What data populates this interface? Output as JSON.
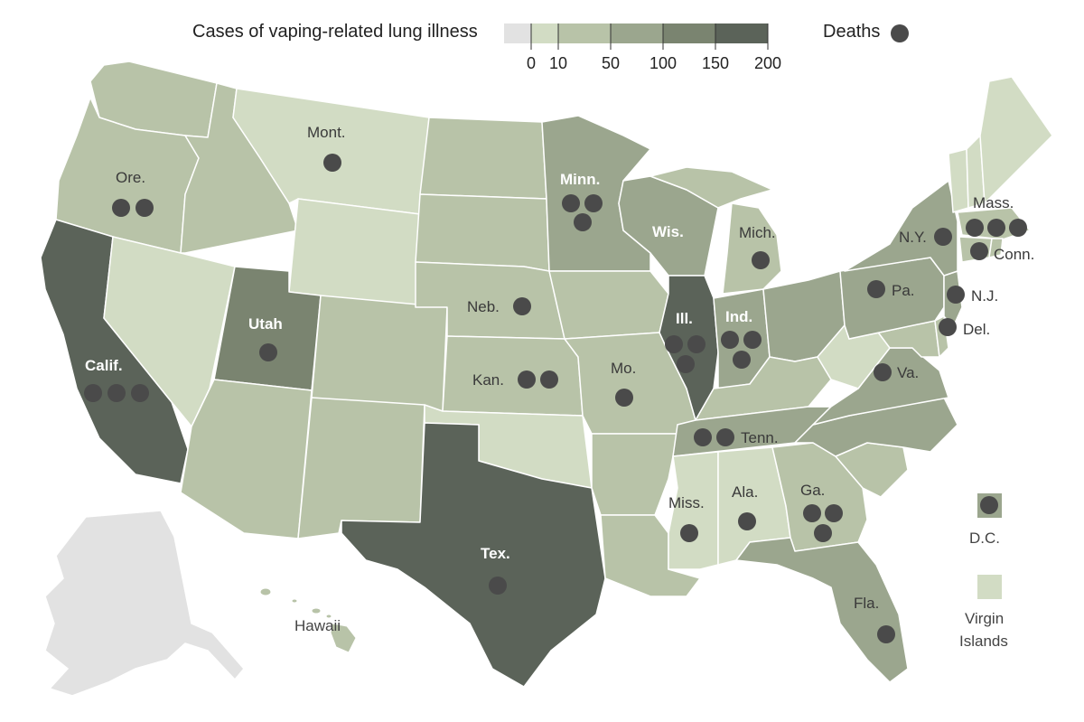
{
  "legend": {
    "title": "Cases of vaping-related lung illness",
    "ticks": [
      "0",
      "10",
      "50",
      "100",
      "150",
      "200"
    ],
    "colors": [
      "#e2e2e2",
      "#d2dcc4",
      "#b8c3a8",
      "#9ba68e",
      "#7a8470",
      "#5b6359"
    ],
    "deaths_label": "Deaths"
  },
  "colors": {
    "none": "#e2e2e2",
    "c0_10": "#d2dcc4",
    "c10_50": "#b8c3a8",
    "c50_100": "#9ba68e",
    "c100_150": "#7a8470",
    "c150_200": "#5b6359",
    "border": "#ffffff",
    "dot": "#4a4a4a"
  },
  "states": [
    {
      "label": "Mont.",
      "deaths": 1
    },
    {
      "label": "Ore.",
      "deaths": 2
    },
    {
      "label": "Minn.",
      "deaths": 3
    },
    {
      "label": "Wis.",
      "deaths": 0
    },
    {
      "label": "Mich.",
      "deaths": 1
    },
    {
      "label": "N.Y.",
      "deaths": 1
    },
    {
      "label": "Mass.",
      "deaths": 3
    },
    {
      "label": "Conn.",
      "deaths": 1
    },
    {
      "label": "Pa.",
      "deaths": 1
    },
    {
      "label": "N.J.",
      "deaths": 1
    },
    {
      "label": "Del.",
      "deaths": 1
    },
    {
      "label": "Neb.",
      "deaths": 1
    },
    {
      "label": "Utah",
      "deaths": 1
    },
    {
      "label": "Calif.",
      "deaths": 3
    },
    {
      "label": "Ill.",
      "deaths": 3
    },
    {
      "label": "Ind.",
      "deaths": 3
    },
    {
      "label": "Kan.",
      "deaths": 2
    },
    {
      "label": "Mo.",
      "deaths": 1
    },
    {
      "label": "Va.",
      "deaths": 1
    },
    {
      "label": "Tenn.",
      "deaths": 2
    },
    {
      "label": "Miss.",
      "deaths": 1
    },
    {
      "label": "Ala.",
      "deaths": 1
    },
    {
      "label": "Ga.",
      "deaths": 3
    },
    {
      "label": "Tex.",
      "deaths": 1
    },
    {
      "label": "Fla.",
      "deaths": 1
    }
  ],
  "territories": {
    "hawaii": "Hawaii",
    "dc": "D.C.",
    "vi_line1": "Virgin",
    "vi_line2": "Islands"
  }
}
